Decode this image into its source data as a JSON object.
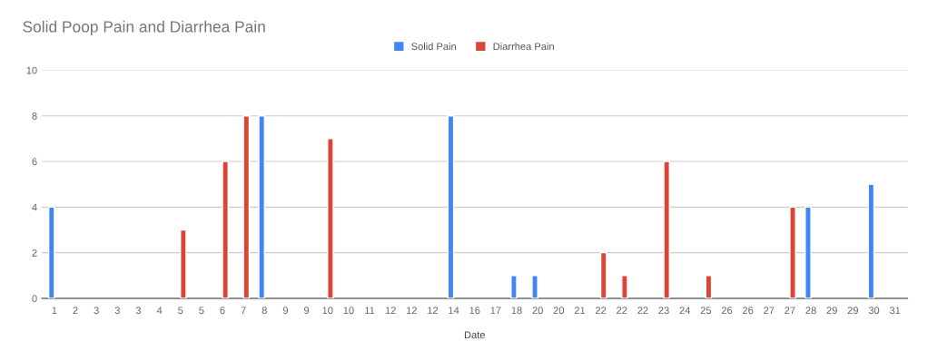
{
  "chart_data": {
    "type": "bar",
    "title": "Solid Poop Pain and Diarrhea Pain",
    "xlabel": "Date",
    "categories": [
      "1",
      "2",
      "3",
      "3",
      "3",
      "4",
      "5",
      "5",
      "6",
      "7",
      "8",
      "9",
      "9",
      "10",
      "10",
      "11",
      "12",
      "12",
      "12",
      "14",
      "16",
      "17",
      "18",
      "20",
      "20",
      "21",
      "22",
      "22",
      "22",
      "23",
      "24",
      "25",
      "26",
      "26",
      "27",
      "27",
      "28",
      "29",
      "29",
      "30",
      "31"
    ],
    "series": [
      {
        "name": "Solid Pain",
        "color": "#4285f4",
        "values": [
          4,
          null,
          null,
          null,
          null,
          null,
          null,
          null,
          null,
          null,
          8,
          null,
          null,
          null,
          null,
          null,
          null,
          null,
          null,
          8,
          null,
          null,
          1,
          1,
          null,
          null,
          null,
          null,
          null,
          null,
          null,
          null,
          null,
          null,
          null,
          null,
          4,
          null,
          null,
          5,
          null
        ]
      },
      {
        "name": "Diarrhea Pain",
        "color": "#db4437",
        "values": [
          null,
          null,
          null,
          null,
          null,
          null,
          3,
          null,
          6,
          8,
          null,
          null,
          null,
          7,
          null,
          null,
          null,
          null,
          null,
          null,
          null,
          null,
          null,
          null,
          null,
          null,
          2,
          1,
          null,
          6,
          null,
          1,
          null,
          null,
          null,
          4,
          null,
          null,
          null,
          null,
          null
        ]
      }
    ],
    "ylim": [
      0,
      10
    ],
    "yticks": [
      0,
      2,
      4,
      6,
      8,
      10
    ],
    "grid": "y",
    "legend": "top"
  }
}
